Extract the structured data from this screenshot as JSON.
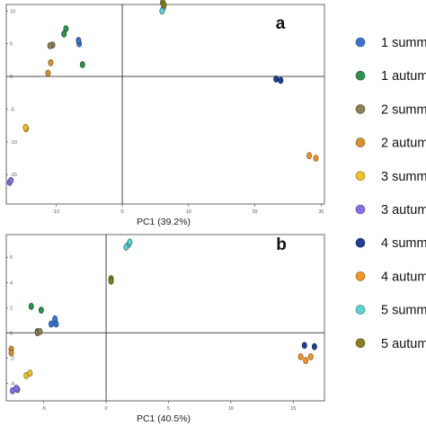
{
  "chart_data": [
    {
      "type": "scatter",
      "panel_label": "a",
      "xlabel": "PC1 (39.2%)",
      "ylabel": "",
      "xlim": [
        -17.5,
        30.5
      ],
      "ylim": [
        -19.5,
        11
      ],
      "xticks": [
        -10,
        0,
        10,
        20,
        30
      ],
      "yticks": [
        -15,
        -10,
        -5,
        0,
        5,
        10
      ],
      "series": [
        {
          "name": "1 summer",
          "color": "#3b74d0",
          "points": [
            [
              -6.5,
              5.0
            ],
            [
              -6.6,
              5.5
            ]
          ]
        },
        {
          "name": "1 autumn",
          "color": "#2e9150",
          "points": [
            [
              -8.5,
              7.3
            ],
            [
              -8.8,
              6.5
            ],
            [
              -6.0,
              1.8
            ]
          ]
        },
        {
          "name": "2 summer",
          "color": "#8b8058",
          "points": [
            [
              -10.5,
              4.8
            ],
            [
              -10.9,
              4.7
            ]
          ]
        },
        {
          "name": "2 autumn",
          "color": "#d3922f",
          "points": [
            [
              -11.2,
              0.5
            ],
            [
              -10.8,
              2.1
            ]
          ]
        },
        {
          "name": "3 summer",
          "color": "#f0c02a",
          "points": [
            [
              -14.5,
              -8.0
            ],
            [
              -14.6,
              -7.8
            ]
          ]
        },
        {
          "name": "3 autumn",
          "color": "#8a6ee8",
          "points": [
            [
              -17.0,
              -16.2
            ],
            [
              -16.8,
              -15.9
            ]
          ]
        },
        {
          "name": "4 summer",
          "color": "#1f3f95",
          "points": [
            [
              23.2,
              -0.4
            ],
            [
              23.9,
              -0.6
            ]
          ]
        },
        {
          "name": "4 autumn",
          "color": "#ef9628",
          "points": [
            [
              28.2,
              -12.1
            ],
            [
              29.2,
              -12.5
            ]
          ]
        },
        {
          "name": "5 summer",
          "color": "#5cd3cf",
          "points": [
            [
              6.2,
              10.5
            ],
            [
              6.0,
              10.0
            ]
          ]
        },
        {
          "name": "5 autumn",
          "color": "#8a7e22",
          "points": [
            [
              6.1,
              11.3
            ],
            [
              6.3,
              10.9
            ]
          ]
        }
      ]
    },
    {
      "type": "scatter",
      "panel_label": "b",
      "xlabel": "PC1 (40.5%)",
      "ylabel": "",
      "xlim": [
        -8,
        17.5
      ],
      "ylim": [
        -5.4,
        7.8
      ],
      "xticks": [
        -5,
        0,
        5,
        10,
        15
      ],
      "yticks": [
        -4,
        -2,
        0,
        2,
        4,
        6
      ],
      "series": [
        {
          "name": "1 summer",
          "color": "#3b74d0",
          "points": [
            [
              -4.0,
              0.7
            ],
            [
              -4.1,
              1.1
            ],
            [
              -4.4,
              0.7
            ]
          ]
        },
        {
          "name": "1 autumn",
          "color": "#2e9150",
          "points": [
            [
              -6.0,
              2.1
            ],
            [
              -5.2,
              1.8
            ],
            [
              -5.5,
              0.1
            ]
          ]
        },
        {
          "name": "2 summer",
          "color": "#8b8058",
          "points": [
            [
              -5.5,
              0.0
            ],
            [
              -5.3,
              0.1
            ]
          ]
        },
        {
          "name": "2 autumn",
          "color": "#d3922f",
          "points": [
            [
              -7.6,
              -1.3
            ],
            [
              -7.6,
              -1.6
            ]
          ]
        },
        {
          "name": "3 summer",
          "color": "#f0c02a",
          "points": [
            [
              -6.4,
              -3.4
            ],
            [
              -6.1,
              -3.2
            ]
          ]
        },
        {
          "name": "3 autumn",
          "color": "#8a6ee8",
          "points": [
            [
              -7.5,
              -4.6
            ],
            [
              -7.1,
              -4.5
            ],
            [
              -7.2,
              -4.4
            ]
          ]
        },
        {
          "name": "4 summer",
          "color": "#1f3f95",
          "points": [
            [
              15.9,
              -1.0
            ],
            [
              16.7,
              -1.1
            ]
          ]
        },
        {
          "name": "4 autumn",
          "color": "#ef9628",
          "points": [
            [
              15.6,
              -1.9
            ],
            [
              16.0,
              -2.2
            ],
            [
              16.4,
              -1.9
            ]
          ]
        },
        {
          "name": "5 summer",
          "color": "#5cd3cf",
          "points": [
            [
              1.8,
              7.0
            ],
            [
              1.9,
              7.2
            ],
            [
              1.6,
              6.8
            ]
          ]
        },
        {
          "name": "5 autumn",
          "color": "#8a7e22",
          "points": [
            [
              0.4,
              4.3
            ],
            [
              0.4,
              4.1
            ]
          ]
        }
      ]
    }
  ],
  "legend": {
    "placement": "right",
    "items": [
      {
        "label": "1 summer",
        "color": "#3b74d0"
      },
      {
        "label": "1 autumn",
        "color": "#2e9150"
      },
      {
        "label": "2 summer",
        "color": "#8b8058"
      },
      {
        "label": "2 autumn",
        "color": "#d3922f"
      },
      {
        "label": "3 summer",
        "color": "#f0c02a"
      },
      {
        "label": "3 autumn",
        "color": "#8a6ee8"
      },
      {
        "label": "4 summer",
        "color": "#1f3f95"
      },
      {
        "label": "4 autumn",
        "color": "#ef9628"
      },
      {
        "label": "5 summer",
        "color": "#5cd3cf"
      },
      {
        "label": "5 autumn",
        "color": "#8a7e22"
      }
    ]
  }
}
